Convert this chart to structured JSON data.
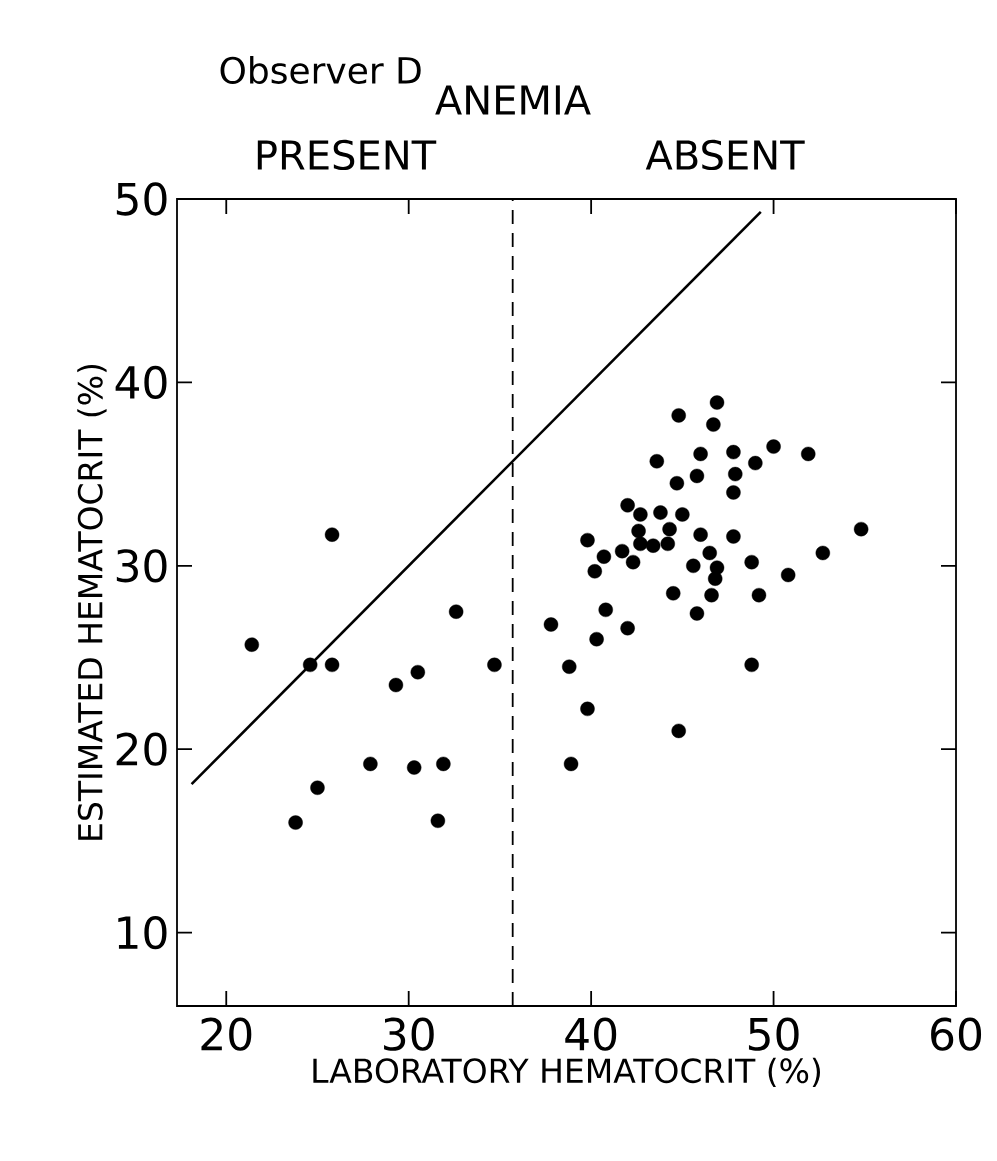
{
  "chart_data": {
    "type": "scatter",
    "title": "Observer D",
    "xlabel": "LABORATORY  HEMATOCRIT (%)",
    "ylabel": "ESTIMATED  HEMATOCRIT (%)",
    "annotations": [
      "ANEMIA",
      "PRESENT",
      "ABSENT"
    ],
    "xlim": [
      17.3,
      60
    ],
    "ylim": [
      6,
      50
    ],
    "xticks": [
      20,
      30,
      40,
      50,
      60
    ],
    "yticks": [
      10,
      20,
      30,
      40,
      50
    ],
    "marker": "circle",
    "series": [
      {
        "color": "#000000",
        "x": [
          21.4,
          24.6,
          25.8,
          32.6,
          30.5,
          29.3,
          34.7,
          27.9,
          30.3,
          31.9,
          25.0,
          23.8,
          31.6,
          25.8,
          46.9,
          44.8,
          46.7,
          46.0,
          47.8,
          50.0,
          51.9,
          43.6,
          49.0,
          45.8,
          47.9,
          44.7,
          47.8,
          42.0,
          42.7,
          43.8,
          45.0,
          42.6,
          44.3,
          42.7,
          43.4,
          44.2,
          46.0,
          47.8,
          39.8,
          54.8,
          40.7,
          41.7,
          42.3,
          46.5,
          45.6,
          46.9,
          46.8,
          52.7,
          48.8,
          50.8,
          40.2,
          44.5,
          46.6,
          49.2,
          40.8,
          45.8,
          37.8,
          42.0,
          40.3,
          38.8,
          48.8,
          39.8,
          44.8,
          38.9
        ],
        "values": [
          25.7,
          24.6,
          24.6,
          27.5,
          24.2,
          23.5,
          24.6,
          19.2,
          19.0,
          19.2,
          17.9,
          16.0,
          16.1,
          31.7,
          38.9,
          38.2,
          37.7,
          36.1,
          36.2,
          36.5,
          36.1,
          35.7,
          35.6,
          34.9,
          35.0,
          34.5,
          34.0,
          33.3,
          32.8,
          32.9,
          32.8,
          31.9,
          32.0,
          31.2,
          31.1,
          31.2,
          31.7,
          31.6,
          31.4,
          32.0,
          30.5,
          30.8,
          30.2,
          30.7,
          30.0,
          29.9,
          29.3,
          30.7,
          30.2,
          29.5,
          29.7,
          28.5,
          28.4,
          28.4,
          27.6,
          27.4,
          26.8,
          26.6,
          26.0,
          24.5,
          24.6,
          22.2,
          21.0,
          19.2
        ]
      },
      {
        "type": "line",
        "color": "#000000",
        "line_style": "solid",
        "marker": "none",
        "x": [
          18.1,
          49.3
        ],
        "values": [
          18.1,
          49.3
        ]
      }
    ],
    "ref_lines": [
      {
        "axis": "x",
        "value": 35.7,
        "line_style": "dashed",
        "color": "#000000"
      }
    ]
  }
}
